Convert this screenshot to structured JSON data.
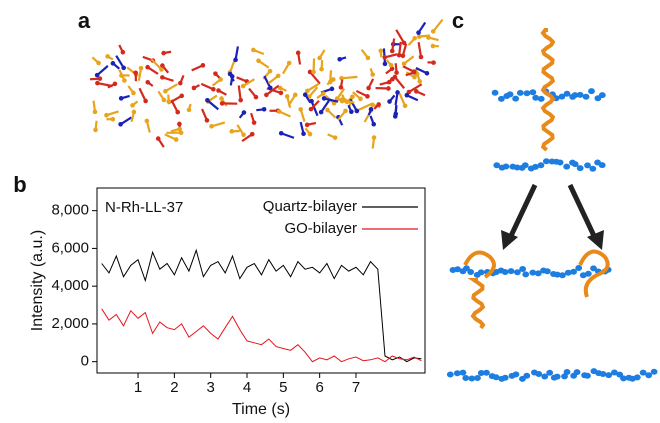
{
  "panel_labels": {
    "a": "a",
    "b": "b",
    "c": "c"
  },
  "chart_data": {
    "type": "line",
    "annotation": "N-Rh-LL-37",
    "x_label": "Time (s)",
    "y_label": "Intensity (a.u.)",
    "x": [
      0,
      0.2,
      0.4,
      0.6,
      0.8,
      1.0,
      1.2,
      1.4,
      1.6,
      1.8,
      2.0,
      2.2,
      2.4,
      2.6,
      2.8,
      3.0,
      3.2,
      3.4,
      3.6,
      3.8,
      4.0,
      4.2,
      4.4,
      4.6,
      4.8,
      5.0,
      5.2,
      5.4,
      5.6,
      5.8,
      6.0,
      6.2,
      6.4,
      6.6,
      6.8,
      7.0,
      7.2,
      7.4,
      7.6,
      7.8,
      8.0,
      8.2,
      8.4,
      8.6,
      8.8
    ],
    "series": [
      {
        "name": "Quartz-bilayer",
        "color": "#000000",
        "values": [
          5200,
          4700,
          5600,
          4500,
          5100,
          5400,
          4300,
          5800,
          4900,
          5200,
          4600,
          5500,
          4800,
          5900,
          4500,
          5100,
          5300,
          4700,
          5600,
          4400,
          5000,
          5200,
          4600,
          5400,
          4800,
          5100,
          4500,
          5300,
          4900,
          5000,
          4700,
          5200,
          4400,
          5100,
          4800,
          5000,
          4600,
          5300,
          4900,
          300,
          100,
          250,
          0,
          200,
          150
        ]
      },
      {
        "name": "GO-bilayer",
        "color": "#e8141c",
        "values": [
          2800,
          2200,
          2500,
          1900,
          2700,
          2300,
          2600,
          1500,
          2100,
          1800,
          1700,
          2000,
          1300,
          1600,
          1900,
          1500,
          1200,
          1800,
          2400,
          1700,
          1100,
          1000,
          900,
          1200,
          800,
          700,
          600,
          900,
          500,
          0,
          200,
          100,
          300,
          0,
          150,
          250,
          50,
          100,
          200,
          0,
          300,
          150,
          100,
          250,
          50
        ]
      }
    ],
    "xlim": [
      -0.13,
      8.9
    ],
    "ylim": [
      -600,
      9200
    ],
    "xticks": [
      1,
      2,
      3,
      4,
      5,
      6,
      7
    ],
    "yticks": [
      0,
      {
        "value": 2000,
        "label": "2,000"
      },
      {
        "value": 4000,
        "label": "4,000"
      },
      {
        "value": 6000,
        "label": "6,000"
      },
      {
        "value": 8000,
        "label": "8,000"
      }
    ],
    "legend": "upper right"
  }
}
